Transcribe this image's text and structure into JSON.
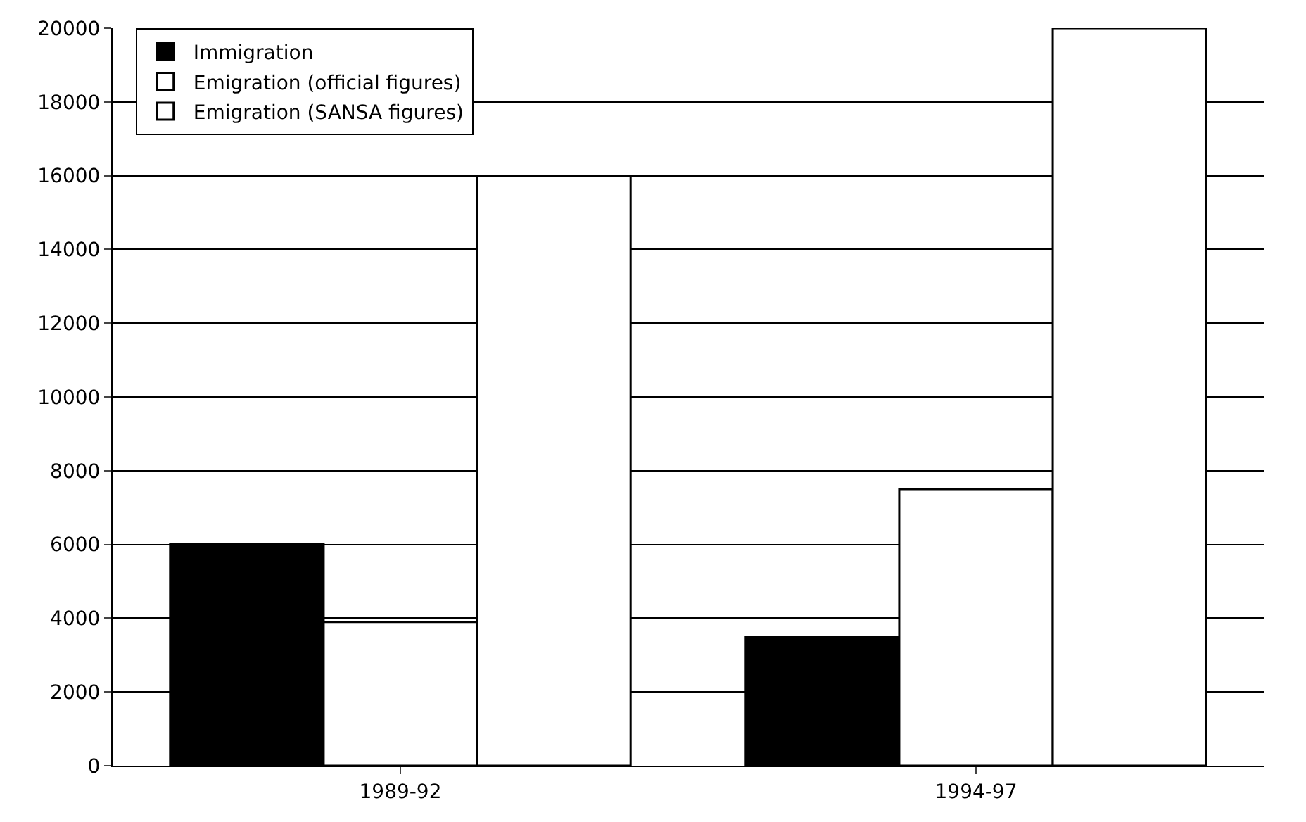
{
  "chart_data": {
    "type": "bar",
    "categories": [
      "1989-92",
      "1994-97"
    ],
    "series": [
      {
        "name": "Immigration",
        "color": "#000000",
        "values": [
          6000,
          3500
        ]
      },
      {
        "name": "Emigration (official figures)",
        "color": "#ffffff",
        "values": [
          3900,
          7500
        ]
      },
      {
        "name": "Emigration (SANSA figures)",
        "color": "#ffffff",
        "values": [
          16000,
          20000
        ]
      }
    ],
    "ylim": [
      0,
      20000
    ],
    "yticks": [
      0,
      2000,
      4000,
      6000,
      8000,
      10000,
      12000,
      14000,
      16000,
      18000,
      20000
    ],
    "grid": "y",
    "legend": "top left"
  }
}
